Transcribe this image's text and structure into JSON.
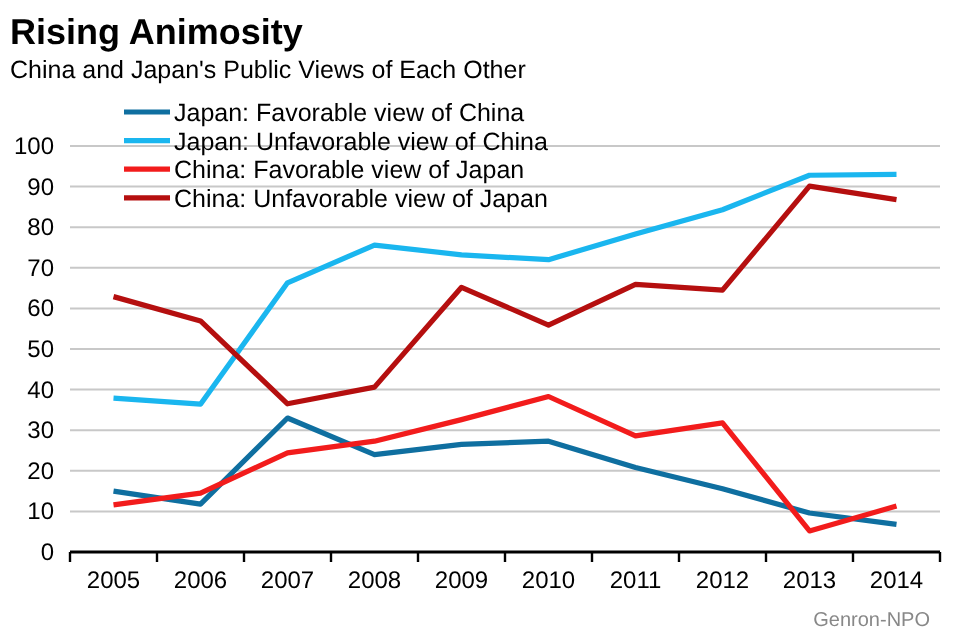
{
  "chart_data": {
    "type": "line",
    "title": "Rising Animosity",
    "subtitle": "China and Japan's Public Views of Each Other",
    "categories": [
      "2005",
      "2006",
      "2007",
      "2008",
      "2009",
      "2010",
      "2011",
      "2012",
      "2013",
      "2014"
    ],
    "series": [
      {
        "name": "Japan: Favorable view of China",
        "color": "#0f6fa0",
        "values": [
          15,
          11.8,
          33,
          24,
          26.5,
          27.3,
          20.8,
          15.6,
          9.6,
          6.8
        ]
      },
      {
        "name": "Japan: Unfavorable view of China",
        "color": "#1ab6ef",
        "values": [
          37.9,
          36.4,
          66.3,
          75.6,
          73.2,
          72,
          78.3,
          84.3,
          92.8,
          93
        ]
      },
      {
        "name": "China: Favorable view of Japan",
        "color": "#f21c1c",
        "values": [
          11.6,
          14.5,
          24.4,
          27.3,
          32.6,
          38.3,
          28.6,
          31.8,
          5.2,
          11.3
        ]
      },
      {
        "name": "China: Unfavorable view of Japan",
        "color": "#b50f0f",
        "values": [
          62.9,
          56.9,
          36.5,
          40.6,
          65.2,
          55.9,
          65.9,
          64.5,
          90.1,
          86.8
        ]
      }
    ],
    "ylim": [
      0,
      100
    ],
    "yticks": [
      0,
      10,
      20,
      30,
      40,
      50,
      60,
      70,
      80,
      90,
      100
    ],
    "grid": "y",
    "legend": "top left",
    "line_style": "solid",
    "marker": "none",
    "annotations": [
      "Genron-NPO"
    ]
  }
}
